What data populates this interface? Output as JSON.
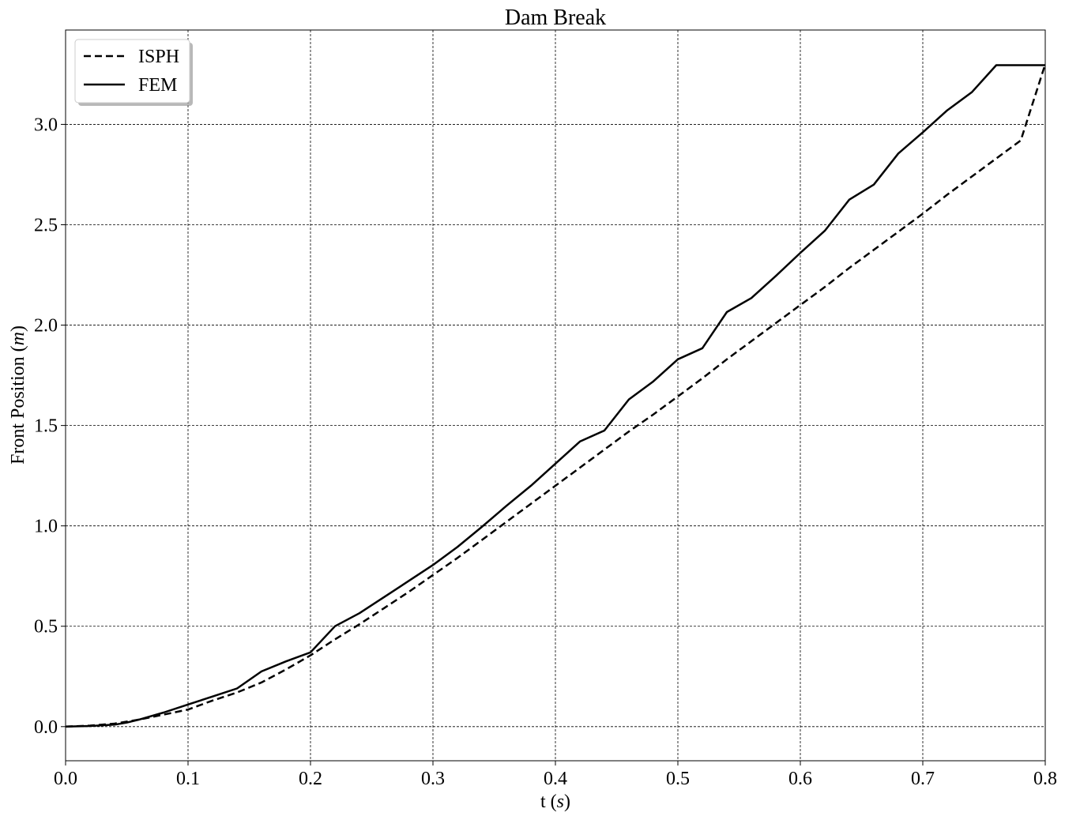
{
  "chart_data": {
    "type": "line",
    "title": "Dam Break",
    "xlabel_text": "t (",
    "xlabel_unit": "s",
    "xlabel_close": ")",
    "ylabel_text": "Front Position (",
    "ylabel_unit": "m",
    "ylabel_close": ")",
    "xlim": [
      0.0,
      0.8
    ],
    "ylim": [
      -0.17,
      3.47
    ],
    "xticks": [
      0.0,
      0.1,
      0.2,
      0.3,
      0.4,
      0.5,
      0.6,
      0.7,
      0.8
    ],
    "xtick_labels": [
      "0.0",
      "0.1",
      "0.2",
      "0.3",
      "0.4",
      "0.5",
      "0.6",
      "0.7",
      "0.8"
    ],
    "yticks": [
      0.0,
      0.5,
      1.0,
      1.5,
      2.0,
      2.5,
      3.0
    ],
    "ytick_labels": [
      "0.0",
      "0.5",
      "1.0",
      "1.5",
      "2.0",
      "2.5",
      "3.0"
    ],
    "grid": true,
    "legend_position": "top-left",
    "series": [
      {
        "name": "ISPH",
        "style": "dashed",
        "color": "#000000",
        "x": [
          0.0,
          0.02,
          0.04,
          0.06,
          0.08,
          0.1,
          0.12,
          0.14,
          0.16,
          0.18,
          0.2,
          0.22,
          0.24,
          0.26,
          0.28,
          0.3,
          0.32,
          0.34,
          0.36,
          0.38,
          0.4,
          0.42,
          0.44,
          0.46,
          0.48,
          0.5,
          0.52,
          0.54,
          0.56,
          0.58,
          0.6,
          0.62,
          0.64,
          0.66,
          0.68,
          0.7,
          0.72,
          0.74,
          0.76,
          0.78,
          0.8
        ],
        "y": [
          0.0,
          0.005,
          0.015,
          0.035,
          0.06,
          0.085,
          0.13,
          0.17,
          0.22,
          0.285,
          0.355,
          0.435,
          0.51,
          0.59,
          0.67,
          0.755,
          0.84,
          0.93,
          1.02,
          1.11,
          1.2,
          1.29,
          1.38,
          1.47,
          1.555,
          1.645,
          1.735,
          1.83,
          1.92,
          2.01,
          2.1,
          2.19,
          2.285,
          2.375,
          2.465,
          2.555,
          2.65,
          2.74,
          2.83,
          2.92,
          3.3
        ]
      },
      {
        "name": "FEM",
        "style": "solid",
        "color": "#000000",
        "x": [
          0.0,
          0.02,
          0.04,
          0.05,
          0.06,
          0.08,
          0.1,
          0.12,
          0.14,
          0.16,
          0.18,
          0.2,
          0.22,
          0.24,
          0.26,
          0.28,
          0.3,
          0.32,
          0.34,
          0.36,
          0.38,
          0.4,
          0.42,
          0.44,
          0.46,
          0.48,
          0.5,
          0.52,
          0.54,
          0.56,
          0.58,
          0.6,
          0.62,
          0.64,
          0.66,
          0.68,
          0.7,
          0.72,
          0.74,
          0.76,
          0.78,
          0.8
        ],
        "y": [
          0.0,
          0.003,
          0.01,
          0.02,
          0.035,
          0.07,
          0.11,
          0.15,
          0.19,
          0.275,
          0.325,
          0.37,
          0.5,
          0.565,
          0.645,
          0.725,
          0.805,
          0.895,
          0.995,
          1.1,
          1.2,
          1.31,
          1.42,
          1.475,
          1.63,
          1.72,
          1.83,
          1.885,
          2.065,
          2.135,
          2.245,
          2.36,
          2.47,
          2.625,
          2.7,
          2.855,
          2.96,
          3.07,
          3.16,
          3.295,
          3.295,
          3.295
        ]
      }
    ]
  }
}
